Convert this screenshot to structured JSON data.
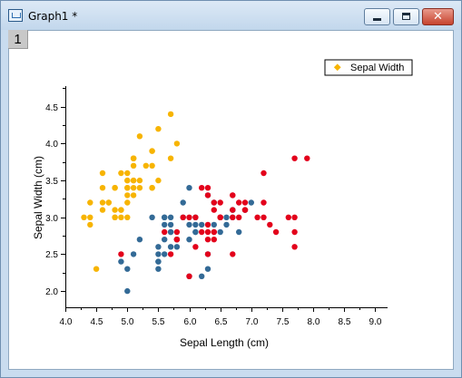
{
  "window": {
    "title": "Graph1 *",
    "layer_label": "1"
  },
  "icons": {
    "app": "origin-graph-icon",
    "minimize": "minimize-icon",
    "maximize": "maximize-icon",
    "close": "close-icon"
  },
  "close_glyph": "✕",
  "colors": {
    "setosa": "#f7b400",
    "versicolor": "#336a96",
    "virginica": "#e3001b"
  },
  "chart_data": {
    "type": "scatter",
    "xlabel": "Sepal Length (cm)",
    "ylabel": "Sepal Width (cm)",
    "xlim": [
      4.0,
      9.2
    ],
    "ylim": [
      1.78,
      4.78
    ],
    "xticks": [
      "4.0",
      "4.5",
      "5.0",
      "5.5",
      "6.0",
      "6.5",
      "7.0",
      "7.5",
      "8.0",
      "8.5",
      "9.0"
    ],
    "yticks": [
      "2.0",
      "2.5",
      "3.0",
      "3.5",
      "4.0",
      "4.5"
    ],
    "legend": {
      "position": "top-right",
      "entries": [
        "Sepal Width"
      ]
    },
    "series": [
      {
        "color": "#f7b400",
        "points": [
          [
            5.1,
            3.5
          ],
          [
            4.9,
            3.0
          ],
          [
            4.7,
            3.2
          ],
          [
            4.6,
            3.1
          ],
          [
            5.0,
            3.6
          ],
          [
            5.4,
            3.9
          ],
          [
            4.6,
            3.4
          ],
          [
            5.0,
            3.4
          ],
          [
            4.4,
            2.9
          ],
          [
            4.9,
            3.1
          ],
          [
            5.4,
            3.7
          ],
          [
            4.8,
            3.4
          ],
          [
            4.8,
            3.0
          ],
          [
            4.3,
            3.0
          ],
          [
            5.8,
            4.0
          ],
          [
            5.7,
            4.4
          ],
          [
            5.4,
            3.9
          ],
          [
            5.1,
            3.5
          ],
          [
            5.7,
            3.8
          ],
          [
            5.1,
            3.8
          ],
          [
            5.4,
            3.4
          ],
          [
            5.1,
            3.7
          ],
          [
            4.6,
            3.6
          ],
          [
            5.1,
            3.3
          ],
          [
            4.8,
            3.4
          ],
          [
            5.0,
            3.0
          ],
          [
            5.0,
            3.4
          ],
          [
            5.2,
            3.5
          ],
          [
            5.2,
            3.4
          ],
          [
            4.7,
            3.2
          ],
          [
            4.8,
            3.1
          ],
          [
            5.4,
            3.4
          ],
          [
            5.2,
            4.1
          ],
          [
            5.5,
            4.2
          ],
          [
            4.9,
            3.1
          ],
          [
            5.0,
            3.2
          ],
          [
            5.5,
            3.5
          ],
          [
            4.9,
            3.6
          ],
          [
            4.4,
            3.0
          ],
          [
            5.1,
            3.4
          ],
          [
            5.0,
            3.5
          ],
          [
            4.5,
            2.3
          ],
          [
            4.4,
            3.2
          ],
          [
            5.0,
            3.5
          ],
          [
            5.1,
            3.8
          ],
          [
            4.8,
            3.0
          ],
          [
            5.1,
            3.8
          ],
          [
            4.6,
            3.2
          ],
          [
            5.3,
            3.7
          ],
          [
            5.0,
            3.3
          ]
        ]
      },
      {
        "color": "#336a96",
        "points": [
          [
            7.0,
            3.2
          ],
          [
            6.4,
            3.2
          ],
          [
            6.9,
            3.1
          ],
          [
            5.5,
            2.3
          ],
          [
            6.5,
            2.8
          ],
          [
            5.7,
            2.8
          ],
          [
            6.3,
            3.3
          ],
          [
            4.9,
            2.4
          ],
          [
            6.6,
            2.9
          ],
          [
            5.2,
            2.7
          ],
          [
            5.0,
            2.0
          ],
          [
            5.9,
            3.0
          ],
          [
            6.0,
            2.2
          ],
          [
            6.1,
            2.9
          ],
          [
            5.6,
            2.9
          ],
          [
            6.7,
            3.1
          ],
          [
            5.6,
            3.0
          ],
          [
            5.8,
            2.7
          ],
          [
            6.2,
            2.2
          ],
          [
            5.6,
            2.5
          ],
          [
            5.9,
            3.2
          ],
          [
            6.1,
            2.8
          ],
          [
            6.3,
            2.5
          ],
          [
            6.1,
            2.8
          ],
          [
            6.4,
            2.9
          ],
          [
            6.6,
            3.0
          ],
          [
            6.8,
            2.8
          ],
          [
            6.7,
            3.0
          ],
          [
            6.0,
            2.9
          ],
          [
            5.7,
            2.6
          ],
          [
            5.5,
            2.4
          ],
          [
            5.5,
            2.4
          ],
          [
            5.8,
            2.7
          ],
          [
            6.0,
            2.7
          ],
          [
            5.4,
            3.0
          ],
          [
            6.0,
            3.4
          ],
          [
            6.7,
            3.1
          ],
          [
            6.3,
            2.3
          ],
          [
            5.6,
            3.0
          ],
          [
            5.5,
            2.5
          ],
          [
            5.5,
            2.6
          ],
          [
            6.1,
            3.0
          ],
          [
            5.8,
            2.6
          ],
          [
            5.0,
            2.3
          ],
          [
            5.6,
            2.7
          ],
          [
            5.7,
            3.0
          ],
          [
            5.7,
            2.9
          ],
          [
            6.2,
            2.9
          ],
          [
            5.1,
            2.5
          ],
          [
            5.7,
            2.8
          ]
        ]
      },
      {
        "color": "#e3001b",
        "points": [
          [
            6.3,
            3.3
          ],
          [
            5.8,
            2.7
          ],
          [
            7.1,
            3.0
          ],
          [
            6.3,
            2.9
          ],
          [
            6.5,
            3.0
          ],
          [
            7.6,
            3.0
          ],
          [
            4.9,
            2.5
          ],
          [
            7.3,
            2.9
          ],
          [
            6.7,
            2.5
          ],
          [
            7.2,
            3.6
          ],
          [
            6.5,
            3.2
          ],
          [
            6.4,
            2.7
          ],
          [
            6.8,
            3.0
          ],
          [
            5.7,
            2.5
          ],
          [
            5.8,
            2.8
          ],
          [
            6.4,
            3.2
          ],
          [
            6.5,
            3.0
          ],
          [
            7.7,
            3.8
          ],
          [
            7.7,
            2.6
          ],
          [
            6.0,
            2.2
          ],
          [
            6.9,
            3.2
          ],
          [
            5.6,
            2.8
          ],
          [
            7.7,
            2.8
          ],
          [
            6.3,
            2.7
          ],
          [
            6.7,
            3.3
          ],
          [
            7.2,
            3.2
          ],
          [
            6.2,
            2.8
          ],
          [
            6.1,
            3.0
          ],
          [
            6.4,
            2.8
          ],
          [
            7.2,
            3.0
          ],
          [
            7.4,
            2.8
          ],
          [
            7.9,
            3.8
          ],
          [
            6.4,
            2.8
          ],
          [
            6.3,
            2.8
          ],
          [
            6.1,
            2.6
          ],
          [
            7.7,
            3.0
          ],
          [
            6.3,
            3.4
          ],
          [
            6.4,
            3.1
          ],
          [
            6.0,
            3.0
          ],
          [
            6.9,
            3.1
          ],
          [
            6.7,
            3.1
          ],
          [
            6.9,
            3.1
          ],
          [
            5.8,
            2.7
          ],
          [
            6.8,
            3.2
          ],
          [
            6.7,
            3.3
          ],
          [
            6.7,
            3.0
          ],
          [
            6.3,
            2.5
          ],
          [
            6.5,
            3.0
          ],
          [
            6.2,
            3.4
          ],
          [
            5.9,
            3.0
          ]
        ]
      }
    ]
  }
}
